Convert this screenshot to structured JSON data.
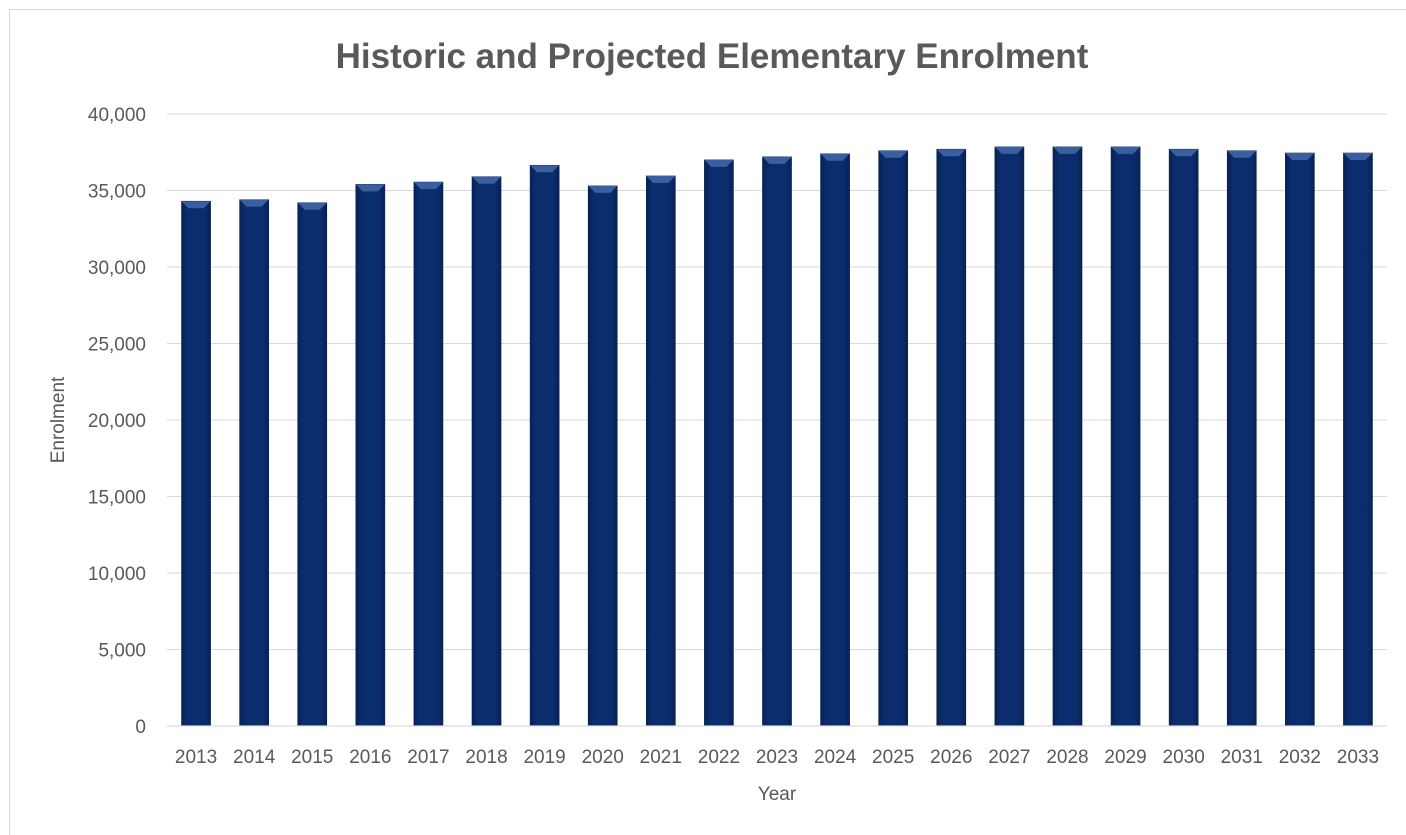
{
  "chart_data": {
    "type": "bar",
    "title": "Historic and Projected Elementary Enrolment",
    "xlabel": "Year",
    "ylabel": "Enrolment",
    "ylim": [
      0,
      40000
    ],
    "y_ticks": [
      "0",
      "5,000",
      "10,000",
      "15,000",
      "20,000",
      "25,000",
      "30,000",
      "35,000",
      "40,000"
    ],
    "y_tick_values": [
      0,
      5000,
      10000,
      15000,
      20000,
      25000,
      30000,
      35000,
      40000
    ],
    "grid": true,
    "legend": "none",
    "categories": [
      "2013",
      "2014",
      "2015",
      "2016",
      "2017",
      "2018",
      "2019",
      "2020",
      "2021",
      "2022",
      "2023",
      "2024",
      "2025",
      "2026",
      "2027",
      "2028",
      "2029",
      "2030",
      "2031",
      "2032",
      "2033"
    ],
    "values": [
      34300,
      34400,
      34200,
      35400,
      35550,
      35900,
      36650,
      35300,
      35950,
      37000,
      37200,
      37400,
      37600,
      37700,
      37850,
      37850,
      37850,
      37700,
      37600,
      37450,
      37450
    ],
    "colors": {
      "bar": "#0b2d6e",
      "bar_top": "#3a5f9e",
      "bar_edge": "#06214f",
      "text": "#595959",
      "grid": "#d9d9d9"
    }
  }
}
